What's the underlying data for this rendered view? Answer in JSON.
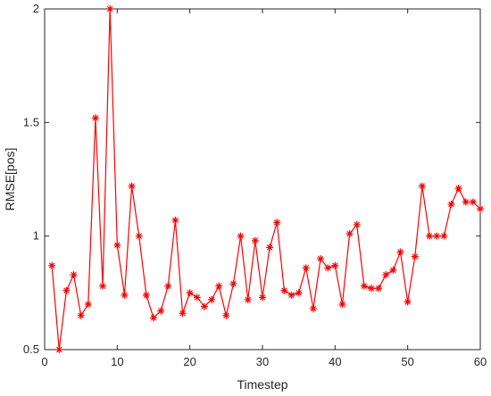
{
  "chart_data": {
    "type": "line",
    "xlabel": "Timestep",
    "ylabel": "RMSE[pos]",
    "xlim": [
      0,
      60
    ],
    "ylim": [
      0.5,
      2
    ],
    "xticks": [
      0,
      10,
      20,
      30,
      40,
      50,
      60
    ],
    "yticks": [
      0.5,
      1,
      1.5,
      2
    ],
    "ytick_labels": [
      "0.5",
      "1",
      "1.5",
      "2"
    ],
    "grid": false,
    "marker": "asterisk",
    "color": "#ff0000",
    "series": [
      {
        "x": [
          1,
          2,
          3,
          4,
          5,
          6,
          7,
          8,
          9,
          10,
          11,
          12,
          13,
          14,
          15,
          16,
          17,
          18,
          19,
          20,
          21,
          22,
          23,
          24,
          25,
          26,
          27,
          28,
          29,
          30,
          31,
          32,
          33,
          34,
          35,
          36,
          37,
          38,
          39,
          40,
          41,
          42,
          43,
          44,
          45,
          46,
          47,
          48,
          49,
          50,
          51,
          52,
          53,
          54,
          55,
          56,
          57,
          58,
          59,
          60
        ],
        "values": [
          0.87,
          0.5,
          0.76,
          0.83,
          0.65,
          0.7,
          1.52,
          0.78,
          2.0,
          0.96,
          0.74,
          1.22,
          1.0,
          0.74,
          0.64,
          0.67,
          0.78,
          1.07,
          0.66,
          0.75,
          0.73,
          0.69,
          0.72,
          0.78,
          0.65,
          0.79,
          1.0,
          0.72,
          0.98,
          0.73,
          0.95,
          1.06,
          0.76,
          0.74,
          0.75,
          0.86,
          0.68,
          0.9,
          0.86,
          0.87,
          0.7,
          1.01,
          1.05,
          0.78,
          0.77,
          0.77,
          0.83,
          0.85,
          0.93,
          0.71,
          0.91,
          1.22,
          1.0,
          1.0,
          1.0,
          1.14,
          1.21,
          1.15,
          1.15,
          1.12
        ]
      }
    ]
  }
}
